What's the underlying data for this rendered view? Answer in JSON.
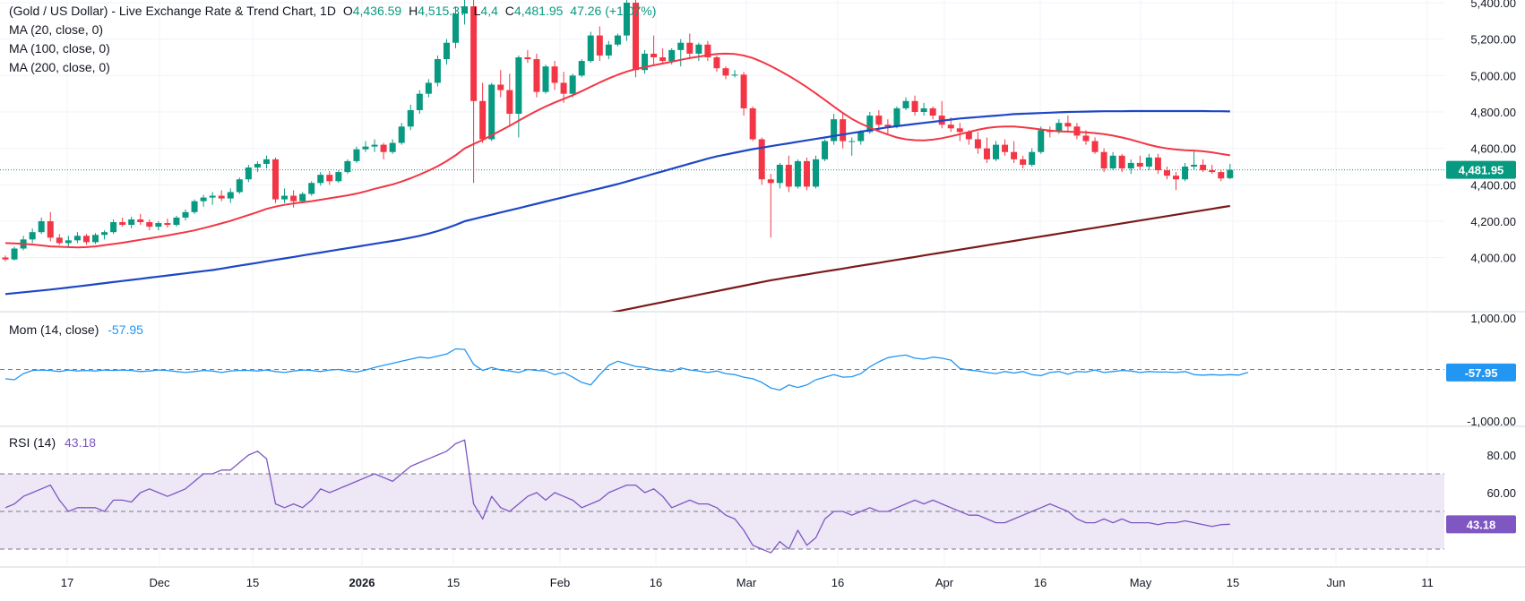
{
  "header": {
    "symbol": "(Gold / US Dollar) - Live Exchange Rate & Trend Chart, 1D",
    "open_label": "O",
    "open": "4,436.59",
    "high_label": "H",
    "high": "4,515.37",
    "low_label": "L",
    "low": "4,4",
    "close_label": "C",
    "close": "4,481.95",
    "change": "47.26 (+1.07%)"
  },
  "indicators": {
    "ma20": "MA (20, close, 0)",
    "ma100": "MA (100, close, 0)",
    "ma200": "MA (200, close, 0)",
    "mom_label": "Mom (14, close)",
    "mom_value": "-57.95",
    "rsi_label": "RSI (14)",
    "rsi_value": "43.18"
  },
  "price_axis": [
    "5,400.00",
    "5,200.00",
    "5,000.00",
    "4,800.00",
    "4,600.00",
    "4,400.00",
    "4,200.00",
    "4,000.00"
  ],
  "price_badge": "4,481.95",
  "mom_axis": [
    "1,000.00",
    "-1,000.00"
  ],
  "mom_badge": "-57.95",
  "rsi_axis": [
    "80.00",
    "60.00"
  ],
  "rsi_badge": "43.18",
  "x_axis": [
    {
      "label": "17",
      "bold": false
    },
    {
      "label": "Dec",
      "bold": false
    },
    {
      "label": "15",
      "bold": false
    },
    {
      "label": "2026",
      "bold": true
    },
    {
      "label": "15",
      "bold": false
    },
    {
      "label": "Feb",
      "bold": false
    },
    {
      "label": "16",
      "bold": false
    },
    {
      "label": "Mar",
      "bold": false
    },
    {
      "label": "16",
      "bold": false
    },
    {
      "label": "Apr",
      "bold": false
    },
    {
      "label": "16",
      "bold": false
    },
    {
      "label": "May",
      "bold": false
    },
    {
      "label": "15",
      "bold": false
    },
    {
      "label": "Jun",
      "bold": false
    },
    {
      "label": "11",
      "bold": false
    }
  ],
  "colors": {
    "up": "#089981",
    "down": "#f23645",
    "ma20": "#f23645",
    "ma100": "#1e47c5",
    "ma200": "#7a1a1a",
    "mom": "#2196f3",
    "rsi": "#7e57c2",
    "rsi_band": "#ede7f6"
  },
  "chart_data": {
    "type": "candlestick",
    "y_range": [
      3900,
      5400
    ],
    "candles": [
      [
        4001,
        4012,
        3980,
        3990
      ],
      [
        3990,
        4060,
        3985,
        4050
      ],
      [
        4050,
        4120,
        4040,
        4100
      ],
      [
        4100,
        4160,
        4080,
        4140
      ],
      [
        4140,
        4220,
        4130,
        4200
      ],
      [
        4200,
        4250,
        4090,
        4110
      ],
      [
        4110,
        4130,
        4070,
        4080
      ],
      [
        4080,
        4120,
        4060,
        4095
      ],
      [
        4095,
        4140,
        4080,
        4120
      ],
      [
        4120,
        4130,
        4070,
        4085
      ],
      [
        4085,
        4135,
        4075,
        4125
      ],
      [
        4125,
        4150,
        4100,
        4140
      ],
      [
        4140,
        4210,
        4130,
        4195
      ],
      [
        4195,
        4220,
        4170,
        4180
      ],
      [
        4180,
        4225,
        4160,
        4210
      ],
      [
        4210,
        4240,
        4180,
        4195
      ],
      [
        4195,
        4210,
        4150,
        4170
      ],
      [
        4170,
        4200,
        4150,
        4190
      ],
      [
        4190,
        4215,
        4165,
        4180
      ],
      [
        4180,
        4230,
        4170,
        4220
      ],
      [
        4220,
        4265,
        4205,
        4250
      ],
      [
        4250,
        4320,
        4240,
        4310
      ],
      [
        4310,
        4345,
        4280,
        4330
      ],
      [
        4330,
        4360,
        4290,
        4340
      ],
      [
        4340,
        4370,
        4310,
        4325
      ],
      [
        4325,
        4380,
        4300,
        4360
      ],
      [
        4360,
        4440,
        4350,
        4430
      ],
      [
        4430,
        4510,
        4415,
        4495
      ],
      [
        4495,
        4530,
        4470,
        4515
      ],
      [
        4515,
        4560,
        4490,
        4540
      ],
      [
        4540,
        4550,
        4300,
        4320
      ],
      [
        4320,
        4380,
        4300,
        4340
      ],
      [
        4340,
        4370,
        4275,
        4310
      ],
      [
        4310,
        4360,
        4300,
        4350
      ],
      [
        4350,
        4420,
        4340,
        4410
      ],
      [
        4410,
        4470,
        4395,
        4455
      ],
      [
        4455,
        4475,
        4400,
        4420
      ],
      [
        4420,
        4480,
        4410,
        4470
      ],
      [
        4470,
        4540,
        4460,
        4530
      ],
      [
        4530,
        4610,
        4520,
        4595
      ],
      [
        4595,
        4640,
        4580,
        4610
      ],
      [
        4610,
        4650,
        4580,
        4620
      ],
      [
        4620,
        4630,
        4540,
        4580
      ],
      [
        4580,
        4650,
        4570,
        4630
      ],
      [
        4630,
        4740,
        4620,
        4720
      ],
      [
        4720,
        4840,
        4700,
        4810
      ],
      [
        4810,
        4920,
        4790,
        4900
      ],
      [
        4900,
        4980,
        4880,
        4960
      ],
      [
        4960,
        5110,
        4940,
        5090
      ],
      [
        5090,
        5200,
        5060,
        5180
      ],
      [
        5180,
        5380,
        5150,
        5340
      ],
      [
        5340,
        5420,
        5280,
        5380
      ],
      [
        5380,
        5420,
        4410,
        4860
      ],
      [
        4860,
        4960,
        4630,
        4650
      ],
      [
        4650,
        4960,
        4640,
        4950
      ],
      [
        4950,
        5030,
        4880,
        4920
      ],
      [
        4920,
        5010,
        4720,
        4790
      ],
      [
        4790,
        5110,
        4660,
        5100
      ],
      [
        5100,
        5140,
        5070,
        5090
      ],
      [
        5090,
        5120,
        4880,
        4910
      ],
      [
        4910,
        5060,
        4900,
        5050
      ],
      [
        5050,
        5080,
        4920,
        4960
      ],
      [
        4960,
        5020,
        4850,
        4900
      ],
      [
        4900,
        5010,
        4880,
        5000
      ],
      [
        5000,
        5090,
        4990,
        5080
      ],
      [
        5080,
        5240,
        5070,
        5220
      ],
      [
        5220,
        5270,
        5080,
        5110
      ],
      [
        5110,
        5190,
        5090,
        5170
      ],
      [
        5170,
        5230,
        5160,
        5220
      ],
      [
        5220,
        5420,
        5190,
        5400
      ],
      [
        5400,
        5420,
        4990,
        5030
      ],
      [
        5030,
        5140,
        5010,
        5120
      ],
      [
        5120,
        5220,
        5060,
        5100
      ],
      [
        5100,
        5150,
        5060,
        5080
      ],
      [
        5080,
        5150,
        5060,
        5140
      ],
      [
        5140,
        5200,
        5050,
        5180
      ],
      [
        5180,
        5230,
        5090,
        5120
      ],
      [
        5120,
        5180,
        5080,
        5170
      ],
      [
        5170,
        5190,
        5080,
        5100
      ],
      [
        5100,
        5110,
        5020,
        5040
      ],
      [
        5040,
        5050,
        4980,
        5000
      ],
      [
        5000,
        5030,
        4990,
        5005
      ],
      [
        5005,
        5020,
        4780,
        4820
      ],
      [
        4820,
        4830,
        4640,
        4650
      ],
      [
        4650,
        4660,
        4400,
        4430
      ],
      [
        4430,
        4460,
        4110,
        4410
      ],
      [
        4410,
        4520,
        4380,
        4510
      ],
      [
        4510,
        4560,
        4360,
        4390
      ],
      [
        4390,
        4540,
        4380,
        4530
      ],
      [
        4530,
        4550,
        4370,
        4390
      ],
      [
        4390,
        4560,
        4380,
        4540
      ],
      [
        4540,
        4650,
        4530,
        4640
      ],
      [
        4640,
        4790,
        4620,
        4760
      ],
      [
        4760,
        4800,
        4600,
        4640
      ],
      [
        4640,
        4660,
        4560,
        4640
      ],
      [
        4640,
        4700,
        4620,
        4690
      ],
      [
        4690,
        4800,
        4680,
        4780
      ],
      [
        4780,
        4810,
        4690,
        4730
      ],
      [
        4730,
        4760,
        4680,
        4720
      ],
      [
        4720,
        4830,
        4710,
        4820
      ],
      [
        4820,
        4880,
        4810,
        4860
      ],
      [
        4860,
        4890,
        4780,
        4800
      ],
      [
        4800,
        4850,
        4780,
        4820
      ],
      [
        4820,
        4830,
        4760,
        4780
      ],
      [
        4780,
        4860,
        4710,
        4730
      ],
      [
        4730,
        4770,
        4690,
        4710
      ],
      [
        4710,
        4740,
        4640,
        4690
      ],
      [
        4690,
        4700,
        4620,
        4650
      ],
      [
        4650,
        4690,
        4570,
        4600
      ],
      [
        4600,
        4660,
        4520,
        4540
      ],
      [
        4540,
        4640,
        4530,
        4620
      ],
      [
        4620,
        4650,
        4560,
        4580
      ],
      [
        4580,
        4640,
        4520,
        4540
      ],
      [
        4540,
        4560,
        4490,
        4510
      ],
      [
        4510,
        4600,
        4500,
        4580
      ],
      [
        4580,
        4720,
        4570,
        4700
      ],
      [
        4700,
        4720,
        4660,
        4690
      ],
      [
        4690,
        4760,
        4680,
        4740
      ],
      [
        4740,
        4780,
        4690,
        4720
      ],
      [
        4720,
        4740,
        4650,
        4670
      ],
      [
        4670,
        4700,
        4620,
        4640
      ],
      [
        4640,
        4660,
        4570,
        4580
      ],
      [
        4580,
        4600,
        4470,
        4490
      ],
      [
        4490,
        4580,
        4480,
        4560
      ],
      [
        4560,
        4570,
        4470,
        4490
      ],
      [
        4490,
        4540,
        4460,
        4520
      ],
      [
        4520,
        4560,
        4480,
        4500
      ],
      [
        4500,
        4570,
        4480,
        4550
      ],
      [
        4550,
        4570,
        4460,
        4480
      ],
      [
        4480,
        4500,
        4430,
        4450
      ],
      [
        4450,
        4470,
        4370,
        4430
      ],
      [
        4430,
        4520,
        4420,
        4500
      ],
      [
        4500,
        4590,
        4480,
        4510
      ],
      [
        4510,
        4540,
        4470,
        4480
      ],
      [
        4480,
        4510,
        4460,
        4470
      ],
      [
        4470,
        4480,
        4420,
        4435
      ],
      [
        4436.59,
        4515.37,
        4430,
        4481.95
      ]
    ],
    "ma20": [
      4080,
      4078,
      4076,
      4072,
      4067,
      4062,
      4060,
      4058,
      4056,
      4058,
      4062,
      4068,
      4075,
      4082,
      4090,
      4098,
      4106,
      4114,
      4122,
      4131,
      4140,
      4150,
      4162,
      4175,
      4188,
      4202,
      4218,
      4234,
      4250,
      4268,
      4280,
      4290,
      4298,
      4304,
      4310,
      4318,
      4326,
      4334,
      4342,
      4352,
      4364,
      4378,
      4390,
      4402,
      4418,
      4436,
      4456,
      4478,
      4502,
      4530,
      4562,
      4600,
      4624,
      4646,
      4672,
      4698,
      4724,
      4752,
      4780,
      4806,
      4830,
      4852,
      4872,
      4892,
      4914,
      4938,
      4962,
      4984,
      5004,
      5022,
      5036,
      5046,
      5056,
      5066,
      5076,
      5086,
      5096,
      5104,
      5112,
      5118,
      5120,
      5118,
      5110,
      5096,
      5076,
      5052,
      5026,
      4998,
      4968,
      4936,
      4902,
      4866,
      4830,
      4794,
      4762,
      4736,
      4714,
      4694,
      4676,
      4660,
      4650,
      4645,
      4644,
      4648,
      4656,
      4666,
      4678,
      4690,
      4702,
      4712,
      4718,
      4720,
      4720,
      4716,
      4710,
      4704,
      4698,
      4694,
      4692,
      4690,
      4688,
      4684,
      4678,
      4670,
      4660,
      4648,
      4634,
      4620,
      4608,
      4600,
      4594,
      4590,
      4588,
      4584,
      4578,
      4570,
      4562
    ],
    "ma100": [
      3800,
      3805,
      3810,
      3815,
      3820,
      3825,
      3830,
      3836,
      3842,
      3848,
      3854,
      3860,
      3866,
      3872,
      3878,
      3884,
      3890,
      3896,
      3902,
      3908,
      3914,
      3920,
      3926,
      3932,
      3940,
      3948,
      3956,
      3964,
      3972,
      3980,
      3988,
      3996,
      4004,
      4012,
      4020,
      4028,
      4036,
      4044,
      4052,
      4060,
      4068,
      4076,
      4084,
      4092,
      4100,
      4110,
      4120,
      4132,
      4146,
      4162,
      4180,
      4200,
      4212,
      4224,
      4236,
      4248,
      4260,
      4272,
      4284,
      4296,
      4308,
      4320,
      4332,
      4344,
      4356,
      4368,
      4380,
      4392,
      4404,
      4418,
      4432,
      4446,
      4460,
      4474,
      4488,
      4502,
      4516,
      4530,
      4544,
      4556,
      4566,
      4576,
      4586,
      4596,
      4604,
      4612,
      4620,
      4628,
      4636,
      4644,
      4652,
      4660,
      4668,
      4676,
      4684,
      4692,
      4700,
      4708,
      4716,
      4722,
      4728,
      4734,
      4740,
      4746,
      4752,
      4758,
      4764,
      4768,
      4772,
      4776,
      4780,
      4784,
      4788,
      4790,
      4792,
      4794,
      4796,
      4798,
      4800,
      4801,
      4802,
      4803,
      4804,
      4804,
      4804,
      4805,
      4805,
      4805,
      4805,
      4805,
      4805,
      4805,
      4805,
      4805,
      4804,
      4804,
      4803
    ],
    "ma200": [
      3200,
      3205,
      3210,
      3215,
      3220,
      3226,
      3232,
      3238,
      3244,
      3250,
      3256,
      3262,
      3268,
      3274,
      3280,
      3286,
      3292,
      3298,
      3304,
      3310,
      3316,
      3322,
      3328,
      3334,
      3340,
      3347,
      3354,
      3361,
      3368,
      3375,
      3382,
      3389,
      3396,
      3403,
      3410,
      3417,
      3424,
      3431,
      3438,
      3445,
      3452,
      3459,
      3466,
      3473,
      3480,
      3488,
      3496,
      3504,
      3512,
      3520,
      3528,
      3536,
      3546,
      3556,
      3566,
      3576,
      3586,
      3596,
      3606,
      3616,
      3626,
      3636,
      3646,
      3656,
      3666,
      3676,
      3686,
      3696,
      3706,
      3716,
      3726,
      3736,
      3746,
      3756,
      3766,
      3776,
      3786,
      3796,
      3806,
      3816,
      3826,
      3836,
      3846,
      3856,
      3866,
      3876,
      3884,
      3892,
      3900,
      3908,
      3916,
      3924,
      3932,
      3940,
      3948,
      3956,
      3964,
      3972,
      3980,
      3988,
      3996,
      4004,
      4012,
      4020,
      4028,
      4036,
      4044,
      4052,
      4060,
      4068,
      4076,
      4084,
      4092,
      4100,
      4108,
      4116,
      4124,
      4132,
      4140,
      4148,
      4156,
      4164,
      4172,
      4180,
      4188,
      4196,
      4204,
      4212,
      4220,
      4228,
      4236,
      4244,
      4252,
      4260,
      4268,
      4276,
      4284
    ],
    "mom": [
      -180,
      -200,
      -80,
      -20,
      -10,
      -20,
      -40,
      -10,
      -30,
      -20,
      -30,
      -10,
      -20,
      -10,
      -20,
      -40,
      -30,
      -10,
      -20,
      -40,
      -60,
      -40,
      -20,
      -30,
      -60,
      -30,
      -20,
      -20,
      -30,
      -10,
      -40,
      -60,
      -30,
      -10,
      -20,
      -40,
      -10,
      0,
      -30,
      -50,
      -10,
      40,
      80,
      120,
      160,
      200,
      240,
      220,
      260,
      300,
      400,
      390,
      100,
      -20,
      40,
      -10,
      -30,
      -60,
      0,
      -20,
      -30,
      -100,
      -60,
      -150,
      -250,
      -300,
      -100,
      80,
      160,
      110,
      60,
      40,
      0,
      -20,
      -40,
      30,
      -10,
      -30,
      -60,
      -30,
      -80,
      -100,
      -150,
      -180,
      -250,
      -360,
      -400,
      -300,
      -350,
      -300,
      -200,
      -150,
      -100,
      -150,
      -140,
      -80,
      50,
      150,
      230,
      260,
      280,
      220,
      200,
      240,
      220,
      180,
      20,
      -10,
      -30,
      -60,
      -80,
      -40,
      -70,
      -40,
      -100,
      -120,
      -60,
      -40,
      -90,
      -40,
      -50,
      -10,
      -60,
      -40,
      -20,
      -30,
      -60,
      -40,
      -50,
      -50,
      -60,
      -40,
      -100,
      -110,
      -100,
      -110,
      -100,
      -110,
      -57.95
    ],
    "rsi": [
      52,
      54,
      58,
      60,
      62,
      64,
      56,
      50,
      52,
      52,
      52,
      50,
      56,
      56,
      55,
      60,
      62,
      60,
      58,
      60,
      62,
      66,
      70,
      70,
      72,
      72,
      76,
      80,
      82,
      78,
      54,
      52,
      54,
      52,
      56,
      62,
      60,
      62,
      64,
      66,
      68,
      70,
      68,
      66,
      70,
      74,
      76,
      78,
      80,
      82,
      86,
      88,
      54,
      46,
      58,
      52,
      50,
      54,
      58,
      60,
      56,
      60,
      58,
      56,
      52,
      54,
      56,
      60,
      62,
      64,
      64,
      60,
      62,
      58,
      52,
      54,
      56,
      54,
      54,
      52,
      48,
      46,
      40,
      32,
      30,
      28,
      34,
      30,
      40,
      32,
      36,
      46,
      50,
      50,
      48,
      50,
      52,
      50,
      50,
      52,
      54,
      56,
      54,
      56,
      54,
      52,
      50,
      48,
      48,
      46,
      44,
      44,
      46,
      48,
      50,
      52,
      54,
      52,
      50,
      46,
      44,
      44,
      46,
      44,
      46,
      44,
      44,
      44,
      43,
      44,
      44,
      45,
      44,
      43,
      42,
      43,
      43.18
    ]
  }
}
